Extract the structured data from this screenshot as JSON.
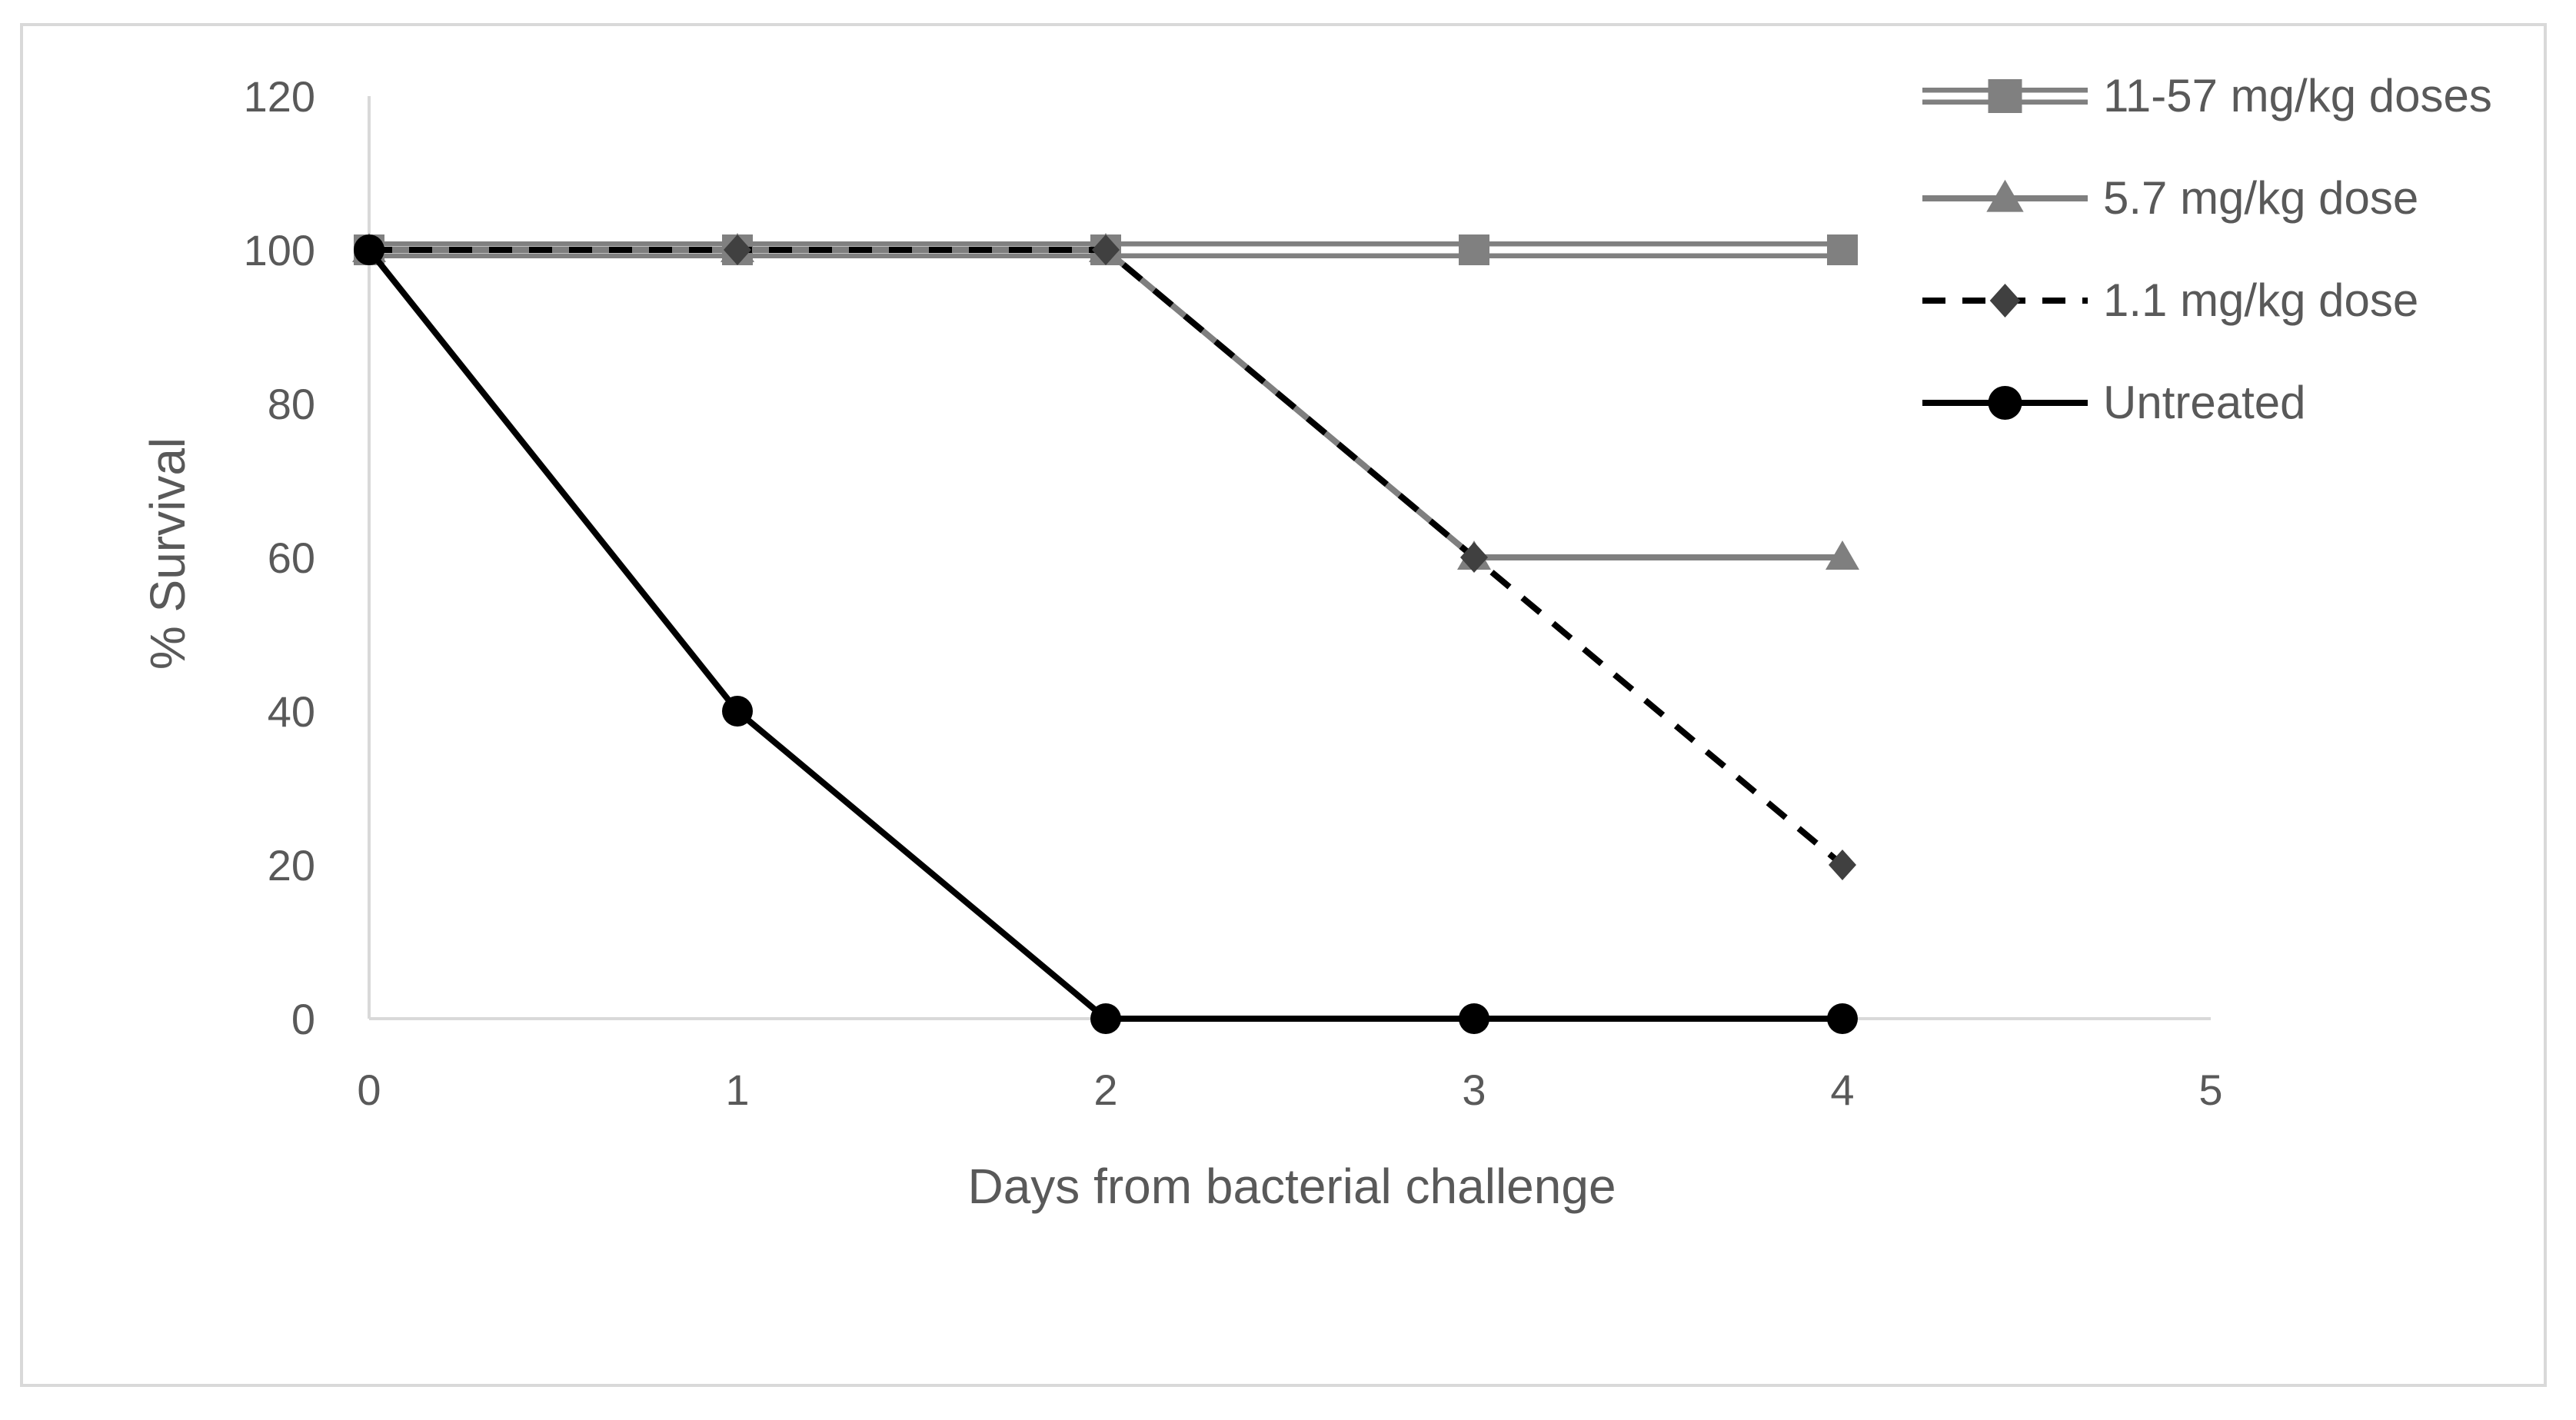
{
  "chart_data": {
    "type": "line",
    "title": "",
    "xlabel": "Days from bacterial challenge",
    "ylabel": "% Survival",
    "xlim": [
      0,
      5
    ],
    "ylim": [
      0,
      120
    ],
    "x_ticks": [
      0,
      1,
      2,
      3,
      4,
      5
    ],
    "y_ticks": [
      0,
      20,
      40,
      60,
      80,
      100,
      120
    ],
    "grid": false,
    "legend_position": "top-right",
    "x": [
      0,
      1,
      2,
      3,
      4
    ],
    "series": [
      {
        "name": "11-57 mg/kg doses",
        "values": [
          100,
          100,
          100,
          100,
          100
        ],
        "marker": "square",
        "line_style": "double",
        "color": "#808080"
      },
      {
        "name": "5.7 mg/kg dose",
        "values": [
          100,
          100,
          100,
          60,
          60
        ],
        "marker": "triangle",
        "line_style": "solid",
        "color": "#7f7f7f"
      },
      {
        "name": "1.1 mg/kg dose",
        "values": [
          100,
          100,
          100,
          60,
          20
        ],
        "marker": "diamond",
        "line_style": "dashed",
        "color": "#000000"
      },
      {
        "name": "Untreated",
        "values": [
          100,
          40,
          0,
          0,
          0
        ],
        "marker": "circle",
        "line_style": "solid",
        "color": "#000000"
      }
    ]
  }
}
